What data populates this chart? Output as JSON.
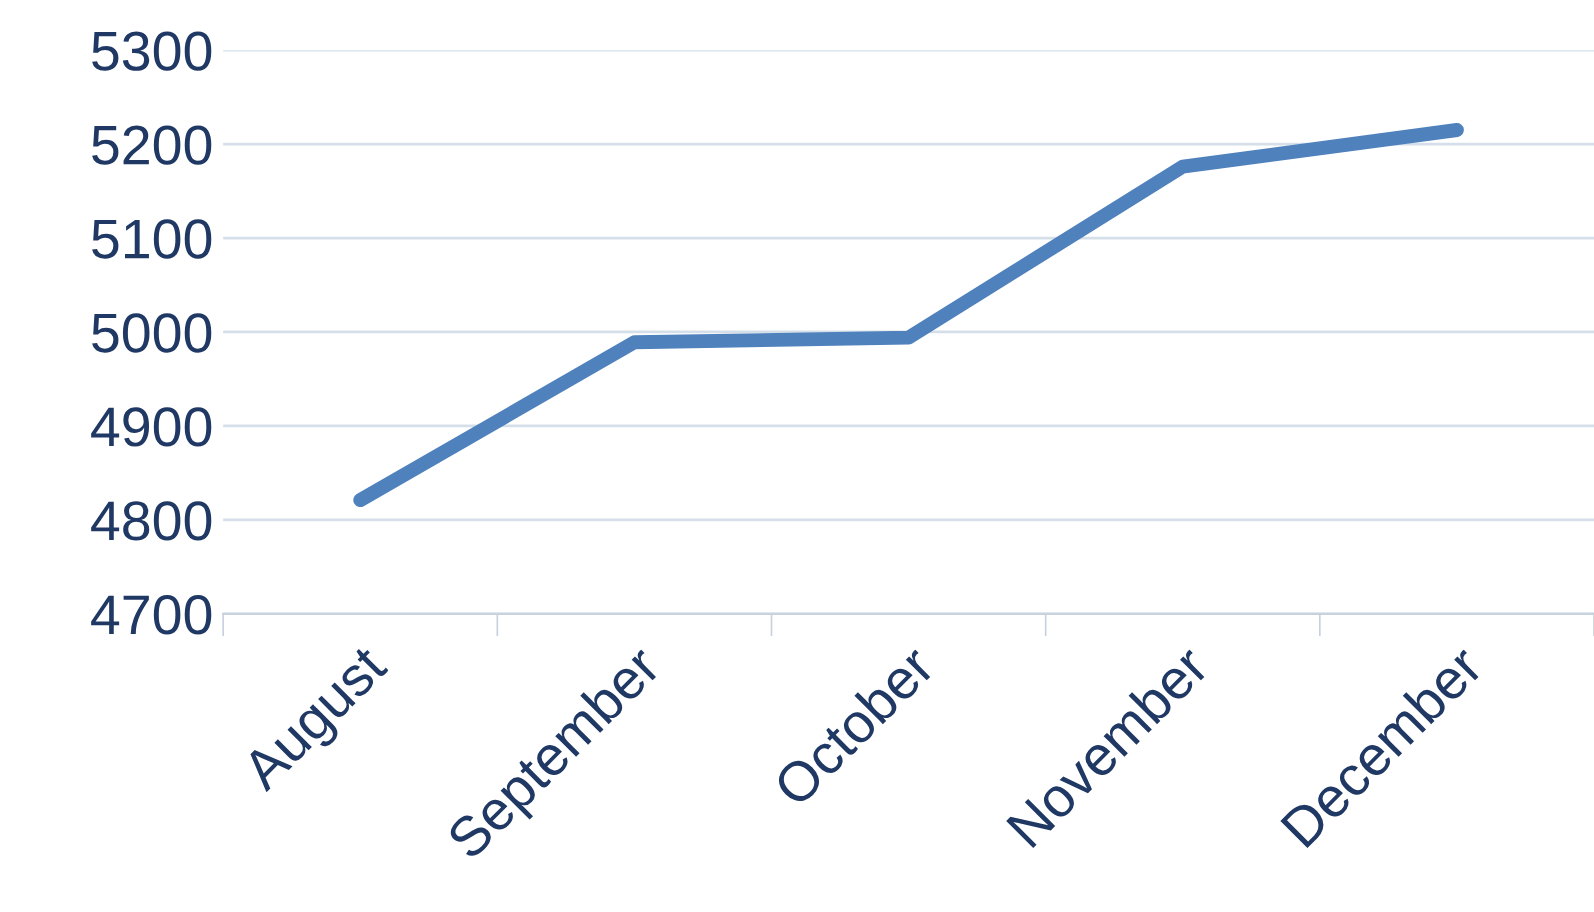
{
  "chart_data": {
    "type": "line",
    "categories": [
      "August",
      "September",
      "October",
      "November",
      "December"
    ],
    "series": [
      {
        "color": "#4f81bd",
        "values": [
          4821,
          4989,
          4994,
          5176,
          5215
        ]
      }
    ],
    "ylim": [
      4700,
      5300
    ],
    "yticks": [
      4700,
      4800,
      4900,
      5000,
      5100,
      5200,
      5300
    ],
    "grid": "y",
    "legend": false,
    "marker": "none",
    "line_style": "solid"
  }
}
